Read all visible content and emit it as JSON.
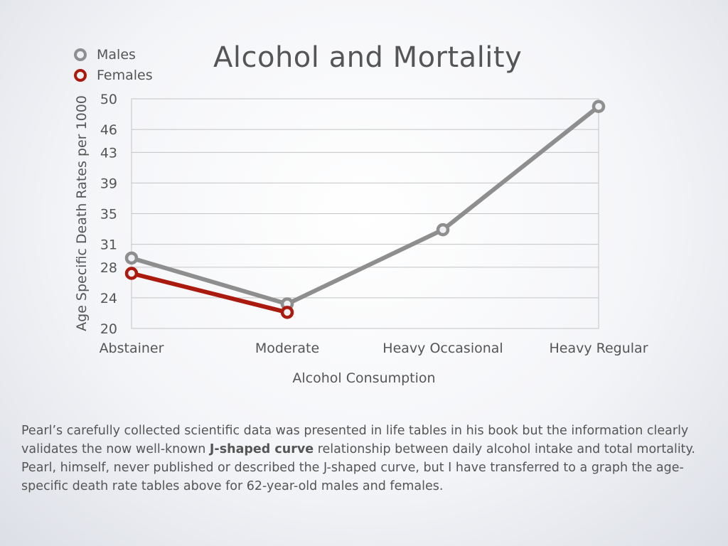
{
  "slide": {
    "title": "Alcohol and Mortality",
    "caption": {
      "before": "Pearl’s carefully collected scientific data was presented in life tables in his book but the information clearly validates the now well-known ",
      "bold": "J-shaped curve",
      "after": " relationship between daily alcohol intake and total mortality.  Pearl, himself, never published or described the J-shaped curve, but I have transferred to a graph the age-specific death rate tables above for 62-year-old males and females."
    }
  },
  "chart_data": {
    "type": "line",
    "title": "Alcohol and Mortality",
    "xlabel": "Alcohol Consumption",
    "ylabel": "Age Specific Death Rates per 1000",
    "categories": [
      "Abstainer",
      "Moderate",
      "Heavy Occasional",
      "Heavy Regular"
    ],
    "ylim": [
      20,
      50
    ],
    "yticks": [
      20,
      24,
      28,
      31,
      35,
      39,
      43,
      46,
      50
    ],
    "grid": true,
    "legend": "top-left",
    "series": [
      {
        "name": "Males",
        "color": "#8e8e8e",
        "values": [
          29.2,
          23.2,
          32.9,
          49.0
        ]
      },
      {
        "name": "Females",
        "color": "#aa1a0e",
        "values": [
          27.2,
          22.1,
          null,
          null
        ]
      }
    ]
  }
}
